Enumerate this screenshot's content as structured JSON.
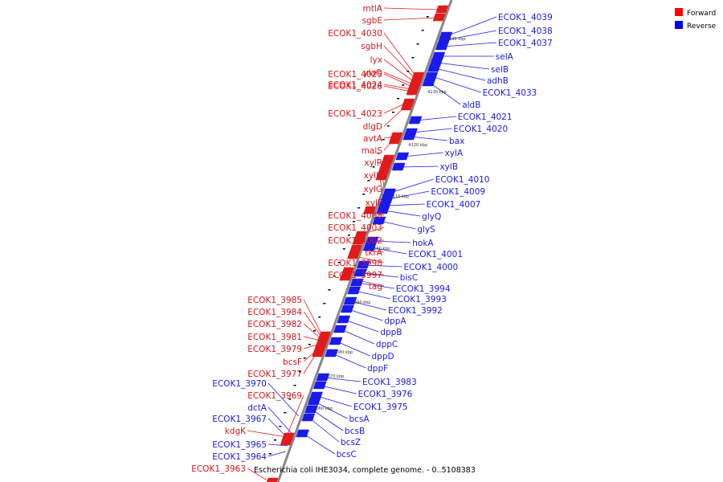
{
  "caption": "Escherichia coli IHE3034, complete genome. - 0..5108383",
  "legend": [
    {
      "label": "Forward",
      "color": "#ff0000"
    },
    {
      "label": "Reverse",
      "color": "#0000ff"
    }
  ],
  "colors": {
    "forward": "#e31a1a",
    "reverse": "#1a1aee",
    "axis": "#888888"
  },
  "position_ticks": [
    "4060 kbp",
    "4070 kbp",
    "4080 kbp",
    "4090 kbp",
    "4100 kbp",
    "4110 kbp",
    "4120 kbp",
    "4130 kbp",
    "4140 kbp"
  ],
  "forward_genes": [
    "mtlA",
    "sgbE",
    "ECOK1_4030",
    "sgbH",
    "lyx",
    "yiaO",
    "ECOK1_4025",
    "ECOK1_4024",
    "ECOK1_4026",
    "ECOK1_4023",
    "dlgD",
    "avtA",
    "malS",
    "xylR",
    "xylH",
    "xylG",
    "xylF",
    "ECOK1_4008",
    "ECOK1_4003",
    "ECOK1_4002",
    "tkrA",
    "ECOK1_3998",
    "ECOK1_3997",
    "tag",
    "ECOK1_3985",
    "ECOK1_3984",
    "ECOK1_3982",
    "ECOK1_3981",
    "ECOK1_3979",
    "bcsF",
    "ECOK1_3977",
    "ECOK1_3969",
    "kdgK",
    "ECOK1_3963"
  ],
  "reverse_genes_left": [
    "ECOK1_3970",
    "dctA",
    "ECOK1_3967",
    "ECOK1_3965",
    "ECOK1_3964"
  ],
  "reverse_genes": [
    "ECOK1_4039",
    "ECOK1_4038",
    "ECOK1_4037",
    "selA",
    "selB",
    "adhB",
    "ECOK1_4033",
    "aldB",
    "ECOK1_4021",
    "ECOK1_4020",
    "bax",
    "xylA",
    "xylB",
    "ECOK1_4010",
    "ECOK1_4009",
    "ECOK1_4007",
    "glyQ",
    "glyS",
    "hokA",
    "ECOK1_4001",
    "ECOK1_4000",
    "bisC",
    "ECOK1_3994",
    "ECOK1_3993",
    "ECOK1_3992",
    "dppA",
    "dppB",
    "dppC",
    "dppD",
    "dppF",
    "ECOK1_3983",
    "ECOK1_3976",
    "ECOK1_3975",
    "bcsA",
    "bcsB",
    "bcsZ",
    "bcsC"
  ]
}
